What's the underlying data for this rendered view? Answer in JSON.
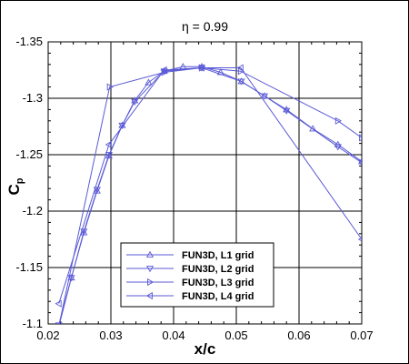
{
  "chart_data": {
    "type": "line",
    "title": "η = 0.99",
    "xlabel": "x/c",
    "ylabel_main": "C",
    "ylabel_sub": "p",
    "xlim": [
      0.02,
      0.07
    ],
    "ylim": [
      -1.35,
      -1.1
    ],
    "y_inverted": true,
    "grid": true,
    "x_ticks": [
      0.02,
      0.03,
      0.04,
      0.05,
      0.06,
      0.07
    ],
    "x_tick_labels": [
      "0.02",
      "0.03",
      "0.04",
      "0.05",
      "0.06",
      "0.07"
    ],
    "y_ticks": [
      -1.35,
      -1.3,
      -1.25,
      -1.2,
      -1.15,
      -1.1
    ],
    "y_tick_labels": [
      "-1.35",
      "-1.3",
      "-1.25",
      "-1.2",
      "-1.15",
      "-1.1"
    ],
    "legend_position": "lower-center",
    "line_color": "#5a5ad6",
    "series": [
      {
        "name": "FUN3D, L1 grid",
        "marker": "triangle-up",
        "x": [
          0.0207,
          0.0237,
          0.0257,
          0.0278,
          0.0297,
          0.0318,
          0.0338,
          0.036,
          0.0385,
          0.0415,
          0.0445,
          0.0475,
          0.0508,
          0.0545,
          0.058,
          0.0622,
          0.0662,
          0.07
        ],
        "y": [
          -1.076,
          -1.141,
          -1.181,
          -1.218,
          -1.249,
          -1.276,
          -1.298,
          -1.314,
          -1.324,
          -1.328,
          -1.328,
          -1.323,
          -1.315,
          -1.302,
          -1.29,
          -1.273,
          -1.259,
          -1.244
        ]
      },
      {
        "name": "FUN3D, L2 grid",
        "marker": "triangle-down",
        "x": [
          0.0217,
          0.0237,
          0.0257,
          0.0278,
          0.0297,
          0.0318,
          0.0338,
          0.0385,
          0.0445,
          0.0508,
          0.0545,
          0.058,
          0.0662,
          0.07
        ],
        "y": [
          -1.099,
          -1.141,
          -1.182,
          -1.219,
          -1.25,
          -1.276,
          -1.297,
          -1.324,
          -1.327,
          -1.315,
          -1.302,
          -1.289,
          -1.257,
          -1.243
        ]
      },
      {
        "name": "FUN3D, L3 grid",
        "marker": "triangle-right",
        "x": [
          0.0217,
          0.0298,
          0.0385,
          0.0445,
          0.0507,
          0.0662,
          0.07
        ],
        "y": [
          -1.098,
          -1.31,
          -1.323,
          -1.327,
          -1.324,
          -1.28,
          -1.265
        ]
      },
      {
        "name": "FUN3D, L4 grid",
        "marker": "triangle-left",
        "x": [
          0.0217,
          0.0297,
          0.0385,
          0.0445,
          0.0507,
          0.07
        ],
        "y": [
          -1.118,
          -1.259,
          -1.325,
          -1.327,
          -1.327,
          -1.175
        ]
      }
    ]
  }
}
